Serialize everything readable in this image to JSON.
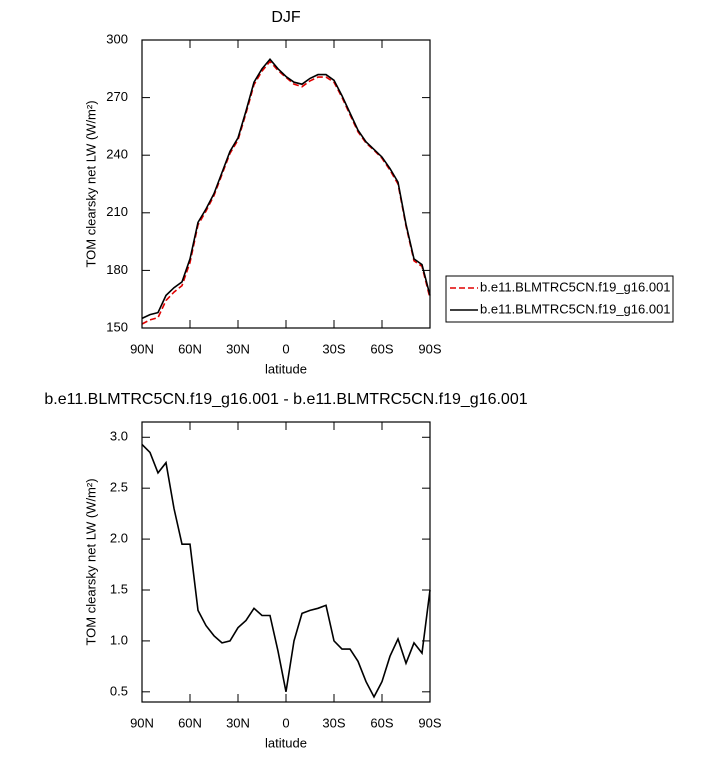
{
  "chart_data": [
    {
      "type": "line",
      "title": "DJF",
      "xlabel": "latitude",
      "ylabel": "TOM clearsky net LW (W/m²)",
      "x": [
        90,
        85,
        80,
        75,
        70,
        65,
        60,
        55,
        50,
        45,
        40,
        35,
        30,
        25,
        20,
        15,
        10,
        5,
        0,
        -5,
        -10,
        -15,
        -20,
        -25,
        -30,
        -35,
        -40,
        -45,
        -50,
        -55,
        -60,
        -65,
        -70,
        -75,
        -80,
        -85,
        -90
      ],
      "series": [
        {
          "name": "b.e11.BLMTRC5CN.f19_g16.001",
          "color": "#e00000",
          "dashed": true,
          "values": [
            152.1,
            154.2,
            155.4,
            164.3,
            168.7,
            172.1,
            184.1,
            203.7,
            210.9,
            219.0,
            230.0,
            241.0,
            247.9,
            261.8,
            276.7,
            283.8,
            288.8,
            284.1,
            280.5,
            277.0,
            275.7,
            278.7,
            280.7,
            280.7,
            278.0,
            270.1,
            261.1,
            252.2,
            246.4,
            242.6,
            238.4,
            232.2,
            225.0,
            203.2,
            185.0,
            182.1,
            165.5
          ]
        },
        {
          "name": "b.e11.BLMTRC5CN.f19_g16.001",
          "color": "#000000",
          "dashed": false,
          "values": [
            155,
            157,
            158,
            167,
            171,
            174,
            186,
            205,
            212,
            220,
            231,
            242,
            249,
            263,
            278,
            285,
            290,
            285,
            281,
            278,
            277,
            280,
            282,
            282,
            279,
            271,
            262,
            253,
            247,
            243,
            239,
            233,
            226,
            204,
            186,
            183,
            167
          ]
        }
      ],
      "xlim": [
        90,
        -90
      ],
      "xticks": [
        {
          "value": 90,
          "label": "90N"
        },
        {
          "value": 60,
          "label": "60N"
        },
        {
          "value": 30,
          "label": "30N"
        },
        0,
        {
          "value": -30,
          "label": "30S"
        },
        {
          "value": -60,
          "label": "60S"
        },
        {
          "value": -90,
          "label": "90S"
        }
      ],
      "ylim": [
        150,
        300
      ],
      "yticks": [
        150,
        180,
        210,
        240,
        270,
        300
      ],
      "legend": "right"
    },
    {
      "type": "line",
      "title": "b.e11.BLMTRC5CN.f19_g16.001 - b.e11.BLMTRC5CN.f19_g16.001",
      "xlabel": "latitude",
      "ylabel": "TOM clearsky net LW (W/m²)",
      "x": [
        90,
        85,
        80,
        75,
        70,
        65,
        60,
        55,
        50,
        45,
        40,
        35,
        30,
        25,
        20,
        15,
        10,
        5,
        0,
        -5,
        -10,
        -15,
        -20,
        -25,
        -30,
        -35,
        -40,
        -45,
        -50,
        -55,
        -60,
        -65,
        -70,
        -75,
        -80,
        -85,
        -90
      ],
      "series": [
        {
          "color": "#000000",
          "dashed": false,
          "values": [
            2.93,
            2.85,
            2.65,
            2.75,
            2.3,
            1.95,
            1.95,
            1.3,
            1.15,
            1.05,
            0.98,
            1.0,
            1.13,
            1.2,
            1.32,
            1.25,
            1.25,
            0.9,
            0.5,
            1.0,
            1.27,
            1.3,
            1.32,
            1.35,
            1.0,
            0.92,
            0.92,
            0.8,
            0.6,
            0.45,
            0.6,
            0.85,
            1.02,
            0.78,
            0.98,
            0.88,
            1.5
          ]
        }
      ],
      "xlim": [
        90,
        -90
      ],
      "xticks": [
        {
          "value": 90,
          "label": "90N"
        },
        {
          "value": 60,
          "label": "60N"
        },
        {
          "value": 30,
          "label": "30N"
        },
        0,
        {
          "value": -30,
          "label": "30S"
        },
        {
          "value": -60,
          "label": "60S"
        },
        {
          "value": -90,
          "label": "90S"
        }
      ],
      "ylim": [
        0.4,
        3.15
      ],
      "yticks": [
        0.5,
        {
          "value": 1,
          "label": "1.0"
        },
        1.5,
        {
          "value": 2,
          "label": "2.0"
        },
        2.5,
        {
          "value": 3,
          "label": "3.0"
        }
      ]
    }
  ]
}
